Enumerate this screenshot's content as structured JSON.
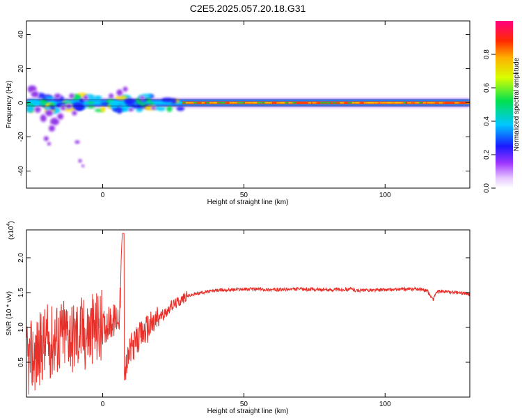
{
  "figure": {
    "title": "C2E5.2025.057.20.18.G31"
  },
  "chart_data": [
    {
      "type": "heatmap",
      "xlabel": "Height of straight line (km)",
      "ylabel": "Frequency (Hz)",
      "xlim": [
        -27,
        130
      ],
      "ylim": [
        -50,
        48
      ],
      "xticks": [
        0,
        50,
        100
      ],
      "yticks": [
        -40,
        -20,
        0,
        20,
        40
      ],
      "colorbar": {
        "label": "Normalized spectral amplitude",
        "range": [
          0,
          1
        ],
        "ticks": [
          0.0,
          0.2,
          0.4,
          0.6,
          0.8
        ],
        "tick_labels": [
          "0.0",
          "0.2",
          "0.4",
          "0.6",
          "0.8"
        ],
        "colormap": "rainbow (purple-blue-cyan-green-yellow-red-magenta)"
      },
      "dominant_frequency_hz": 0,
      "description_points": [
        {
          "x": -25,
          "y": 8,
          "amp": 0.2
        },
        {
          "x": -22,
          "y": -5,
          "amp": 0.1
        },
        {
          "x": -20,
          "y": -22,
          "amp": 0.1
        },
        {
          "x": -17,
          "y": -10,
          "amp": 0.15
        },
        {
          "x": -9,
          "y": -24,
          "amp": 0.05
        },
        {
          "x": -8,
          "y": -35,
          "amp": 0.05
        },
        {
          "x": 7,
          "y": 4,
          "amp": 0.3
        }
      ]
    },
    {
      "type": "line",
      "xlabel": "Height of straight line (km)",
      "ylabel": "SNR (10 * v/v)",
      "scale_label": "(x10",
      "scale_exponent": "4",
      "xlim": [
        -27,
        130
      ],
      "ylim": [
        0,
        2.4
      ],
      "xticks": [
        0,
        50,
        100
      ],
      "yticks": [
        0.5,
        1.0,
        1.5,
        2.0
      ],
      "ytick_labels": [
        "0.5",
        "1.0",
        "1.5",
        "2.0"
      ],
      "series": [
        {
          "color": "#e8302a",
          "x": [
            -27,
            -24,
            -22,
            -20,
            -18,
            -16,
            -14,
            -12,
            -10,
            -8,
            -6,
            -4,
            -2,
            0,
            2,
            4,
            6,
            7,
            7.5,
            8,
            9,
            10,
            12,
            14,
            16,
            18,
            20,
            22,
            24,
            26,
            28,
            30,
            35,
            40,
            45,
            50,
            55,
            60,
            70,
            80,
            88,
            90,
            100,
            110,
            113,
            115,
            117,
            118,
            120,
            125,
            130
          ],
          "y": [
            0.5,
            0.6,
            0.7,
            0.8,
            0.8,
            0.85,
            0.9,
            0.95,
            0.85,
            0.95,
            0.9,
            0.95,
            1.0,
            1.0,
            1.05,
            1.1,
            1.2,
            2.35,
            0.15,
            0.4,
            0.55,
            0.7,
            0.8,
            0.9,
            1.0,
            1.05,
            1.15,
            1.2,
            1.3,
            1.35,
            1.4,
            1.45,
            1.5,
            1.53,
            1.54,
            1.55,
            1.55,
            1.54,
            1.55,
            1.54,
            1.55,
            1.53,
            1.54,
            1.55,
            1.55,
            1.52,
            1.4,
            1.5,
            1.52,
            1.5,
            1.48
          ]
        }
      ]
    }
  ]
}
